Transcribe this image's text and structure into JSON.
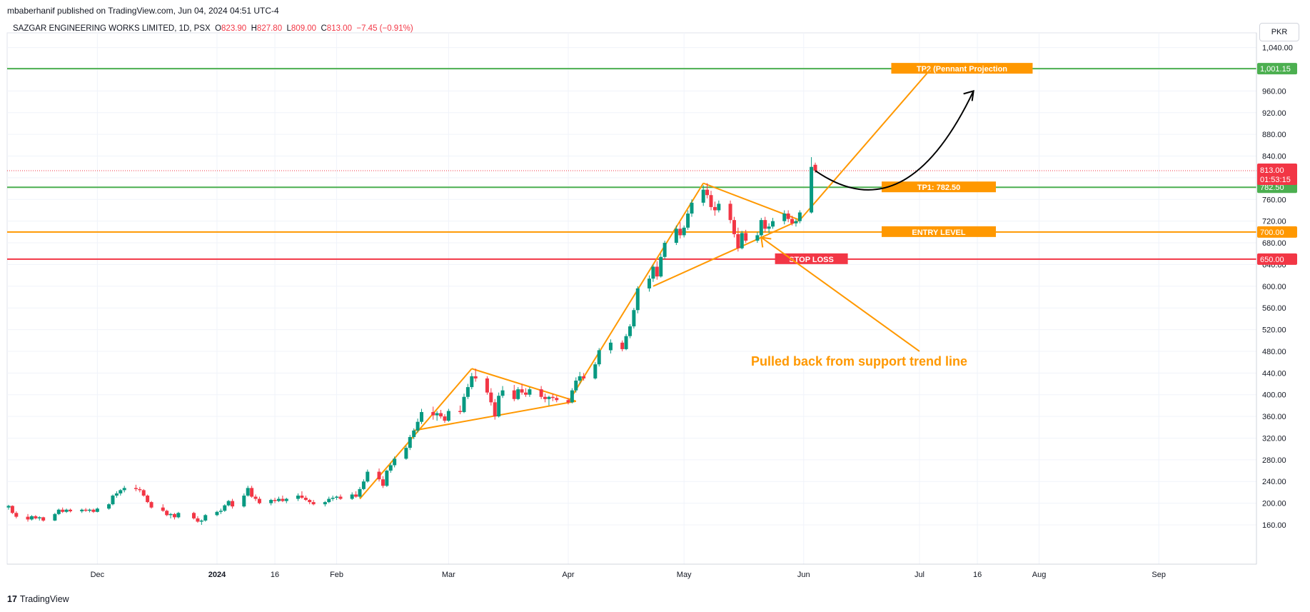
{
  "header": {
    "publisher": "mbaberhanif published on TradingView.com, Jun 04, 2024 04:51 UTC-4",
    "symbol": "SAZGAR ENGINEERING WORKS LIMITED, 1D, PSX",
    "open_label": "O",
    "open": "823.90",
    "high_label": "H",
    "high": "827.80",
    "low_label": "L",
    "low": "809.00",
    "close_label": "C",
    "close": "813.00",
    "change": "−7.45 (−0.91%)"
  },
  "currency": "PKR",
  "footer": {
    "logo": "17",
    "brand": "TradingView"
  },
  "colors": {
    "up": "#089981",
    "down": "#f23645",
    "pattern": "#ff9800",
    "tp_line": "#4caf50",
    "stop_line": "#f23645",
    "entry_line": "#ff9800",
    "text_dark": "#131722",
    "axis_text": "#131722"
  },
  "chart_data": {
    "type": "candlestick",
    "y_axis": {
      "range": [
        150,
        1045
      ],
      "ticks": [
        160,
        200,
        240,
        280,
        320,
        360,
        400,
        440,
        480,
        520,
        560,
        600,
        640,
        680,
        720,
        760,
        800,
        840,
        880,
        920,
        960,
        1000,
        1040
      ],
      "tick_labels": [
        "160.00",
        "200.00",
        "240.00",
        "280.00",
        "320.00",
        "360.00",
        "400.00",
        "440.00",
        "480.00",
        "520.00",
        "560.00",
        "600.00",
        "640.00",
        "680.00",
        "720.00",
        "760.00",
        "800.00",
        "840.00",
        "880.00",
        "920.00",
        "960.00",
        "1,000.00",
        "1,040.00"
      ]
    },
    "x_axis": {
      "start": "2023-11-08",
      "end": "2024-10-15",
      "ticks": [
        {
          "date": "2023-12-01",
          "label": "Dec",
          "bold": false
        },
        {
          "date": "2024-01-01",
          "label": "2024",
          "bold": true
        },
        {
          "date": "2024-01-16",
          "label": "16",
          "bold": false
        },
        {
          "date": "2024-02-01",
          "label": "Feb",
          "bold": false
        },
        {
          "date": "2024-03-01",
          "label": "Mar",
          "bold": false
        },
        {
          "date": "2024-04-01",
          "label": "Apr",
          "bold": false
        },
        {
          "date": "2024-05-01",
          "label": "May",
          "bold": false
        },
        {
          "date": "2024-06-01",
          "label": "Jun",
          "bold": false
        },
        {
          "date": "2024-07-01",
          "label": "Jul",
          "bold": false
        },
        {
          "date": "2024-07-16",
          "label": "16",
          "bold": false
        },
        {
          "date": "2024-08-01",
          "label": "Aug",
          "bold": false
        },
        {
          "date": "2024-09-01",
          "label": "Sep",
          "bold": false
        }
      ]
    },
    "candles": [
      [
        "2023-11-08",
        192,
        197,
        188,
        195
      ],
      [
        "2023-11-09",
        195,
        196,
        180,
        182
      ],
      [
        "2023-11-10",
        182,
        185,
        172,
        175
      ],
      [
        "2023-11-13",
        175,
        180,
        166,
        170
      ],
      [
        "2023-11-14",
        170,
        178,
        168,
        176
      ],
      [
        "2023-11-15",
        176,
        178,
        170,
        172
      ],
      [
        "2023-11-16",
        172,
        176,
        168,
        174
      ],
      [
        "2023-11-17",
        174,
        175,
        166,
        168
      ],
      [
        "2023-11-20",
        168,
        182,
        167,
        180
      ],
      [
        "2023-11-21",
        180,
        190,
        178,
        188
      ],
      [
        "2023-11-22",
        188,
        192,
        182,
        184
      ],
      [
        "2023-11-23",
        184,
        190,
        182,
        188
      ],
      [
        "2023-11-24",
        188,
        190,
        183,
        185
      ],
      [
        "2023-11-27",
        185,
        190,
        182,
        188
      ],
      [
        "2023-11-28",
        188,
        191,
        184,
        186
      ],
      [
        "2023-11-29",
        186,
        190,
        183,
        188
      ],
      [
        "2023-11-30",
        188,
        190,
        182,
        184
      ],
      [
        "2023-12-01",
        184,
        192,
        183,
        190
      ],
      [
        "2023-12-04",
        190,
        200,
        188,
        198
      ],
      [
        "2023-12-05",
        198,
        216,
        196,
        214
      ],
      [
        "2023-12-06",
        214,
        222,
        210,
        218
      ],
      [
        "2023-12-07",
        218,
        226,
        214,
        224
      ],
      [
        "2023-12-08",
        224,
        232,
        220,
        228
      ],
      [
        "2023-12-11",
        228,
        234,
        222,
        226
      ],
      [
        "2023-12-12",
        226,
        230,
        220,
        224
      ],
      [
        "2023-12-13",
        224,
        226,
        212,
        214
      ],
      [
        "2023-12-14",
        214,
        216,
        200,
        202
      ],
      [
        "2023-12-15",
        202,
        204,
        190,
        192
      ],
      [
        "2023-12-18",
        192,
        198,
        184,
        186
      ],
      [
        "2023-12-19",
        186,
        188,
        176,
        178
      ],
      [
        "2023-12-20",
        178,
        182,
        172,
        180
      ],
      [
        "2023-12-21",
        180,
        182,
        170,
        174
      ],
      [
        "2023-12-22",
        174,
        184,
        172,
        182
      ],
      [
        "2023-12-26",
        182,
        184,
        170,
        172
      ],
      [
        "2023-12-27",
        172,
        176,
        164,
        166
      ],
      [
        "2023-12-28",
        166,
        170,
        160,
        168
      ],
      [
        "2023-12-29",
        168,
        180,
        166,
        178
      ],
      [
        "2024-01-01",
        178,
        186,
        176,
        184
      ],
      [
        "2024-01-02",
        184,
        190,
        180,
        186
      ],
      [
        "2024-01-03",
        186,
        198,
        184,
        196
      ],
      [
        "2024-01-04",
        196,
        206,
        194,
        204
      ],
      [
        "2024-01-05",
        204,
        208,
        190,
        194
      ],
      [
        "2024-01-08",
        194,
        218,
        192,
        214
      ],
      [
        "2024-01-09",
        214,
        232,
        212,
        228
      ],
      [
        "2024-01-10",
        228,
        232,
        210,
        212
      ],
      [
        "2024-01-11",
        212,
        216,
        204,
        208
      ],
      [
        "2024-01-12",
        208,
        212,
        198,
        200
      ],
      [
        "2024-01-15",
        200,
        208,
        196,
        206
      ],
      [
        "2024-01-16",
        206,
        210,
        200,
        204
      ],
      [
        "2024-01-17",
        204,
        212,
        202,
        208
      ],
      [
        "2024-01-18",
        208,
        214,
        202,
        204
      ],
      [
        "2024-01-19",
        204,
        210,
        200,
        208
      ],
      [
        "2024-01-22",
        208,
        218,
        204,
        214
      ],
      [
        "2024-01-23",
        214,
        222,
        208,
        210
      ],
      [
        "2024-01-24",
        210,
        214,
        204,
        206
      ],
      [
        "2024-01-25",
        206,
        208,
        198,
        202
      ],
      [
        "2024-01-26",
        202,
        206,
        196,
        198
      ],
      [
        "2024-01-29",
        198,
        204,
        194,
        202
      ],
      [
        "2024-01-30",
        202,
        212,
        200,
        208
      ],
      [
        "2024-01-31",
        208,
        214,
        204,
        210
      ],
      [
        "2024-02-01",
        210,
        214,
        206,
        212
      ],
      [
        "2024-02-02",
        212,
        216,
        206,
        208
      ],
      [
        "2024-02-05",
        208,
        220,
        206,
        216
      ],
      [
        "2024-02-06",
        216,
        222,
        210,
        212
      ],
      [
        "2024-02-07",
        212,
        230,
        210,
        226
      ],
      [
        "2024-02-08",
        226,
        244,
        224,
        240
      ],
      [
        "2024-02-09",
        240,
        262,
        238,
        258
      ],
      [
        "2024-02-12",
        258,
        264,
        240,
        244
      ],
      [
        "2024-02-13",
        244,
        250,
        228,
        232
      ],
      [
        "2024-02-14",
        232,
        262,
        230,
        260
      ],
      [
        "2024-02-15",
        260,
        274,
        256,
        270
      ],
      [
        "2024-02-16",
        270,
        286,
        266,
        282
      ],
      [
        "2024-02-19",
        282,
        306,
        280,
        302
      ],
      [
        "2024-02-20",
        302,
        326,
        298,
        322
      ],
      [
        "2024-02-21",
        322,
        338,
        318,
        334
      ],
      [
        "2024-02-22",
        334,
        356,
        330,
        350
      ],
      [
        "2024-02-23",
        350,
        374,
        346,
        368
      ],
      [
        "2024-02-26",
        368,
        378,
        354,
        362
      ],
      [
        "2024-02-27",
        362,
        370,
        352,
        366
      ],
      [
        "2024-02-28",
        366,
        372,
        356,
        360
      ],
      [
        "2024-02-29",
        360,
        364,
        348,
        352
      ],
      [
        "2024-03-01",
        352,
        374,
        350,
        370
      ],
      [
        "2024-03-04",
        370,
        380,
        364,
        368
      ],
      [
        "2024-03-05",
        368,
        402,
        366,
        396
      ],
      [
        "2024-03-06",
        396,
        420,
        392,
        414
      ],
      [
        "2024-03-07",
        414,
        440,
        410,
        434
      ],
      [
        "2024-03-08",
        434,
        448,
        424,
        430
      ],
      [
        "2024-03-11",
        430,
        434,
        400,
        404
      ],
      [
        "2024-03-12",
        404,
        412,
        380,
        386
      ],
      [
        "2024-03-13",
        386,
        392,
        354,
        360
      ],
      [
        "2024-03-14",
        360,
        404,
        358,
        398
      ],
      [
        "2024-03-15",
        398,
        416,
        394,
        408
      ],
      [
        "2024-03-18",
        408,
        418,
        388,
        392
      ],
      [
        "2024-03-19",
        392,
        414,
        390,
        410
      ],
      [
        "2024-03-20",
        410,
        420,
        400,
        404
      ],
      [
        "2024-03-21",
        404,
        412,
        396,
        400
      ],
      [
        "2024-03-22",
        400,
        414,
        396,
        410
      ],
      [
        "2024-03-25",
        410,
        416,
        392,
        396
      ],
      [
        "2024-03-26",
        396,
        402,
        386,
        392
      ],
      [
        "2024-03-27",
        392,
        398,
        380,
        396
      ],
      [
        "2024-03-28",
        396,
        402,
        388,
        394
      ],
      [
        "2024-03-29",
        394,
        398,
        386,
        390
      ],
      [
        "2024-04-01",
        390,
        394,
        382,
        386
      ],
      [
        "2024-04-02",
        386,
        412,
        384,
        408
      ],
      [
        "2024-04-03",
        408,
        432,
        404,
        426
      ],
      [
        "2024-04-04",
        426,
        442,
        420,
        434
      ],
      [
        "2024-04-05",
        434,
        440,
        426,
        430
      ],
      [
        "2024-04-08",
        430,
        460,
        428,
        456
      ],
      [
        "2024-04-09",
        456,
        486,
        452,
        482
      ],
      [
        "2024-04-12",
        482,
        502,
        476,
        496
      ],
      [
        "2024-04-15",
        496,
        500,
        480,
        484
      ],
      [
        "2024-04-16",
        484,
        512,
        482,
        508
      ],
      [
        "2024-04-17",
        508,
        530,
        504,
        526
      ],
      [
        "2024-04-18",
        526,
        560,
        522,
        556
      ],
      [
        "2024-04-19",
        556,
        600,
        550,
        596
      ],
      [
        "2024-04-22",
        596,
        620,
        590,
        614
      ],
      [
        "2024-04-23",
        614,
        640,
        608,
        636
      ],
      [
        "2024-04-24",
        636,
        646,
        612,
        618
      ],
      [
        "2024-04-25",
        618,
        660,
        616,
        654
      ],
      [
        "2024-04-26",
        654,
        684,
        650,
        680
      ],
      [
        "2024-04-29",
        680,
        712,
        676,
        706
      ],
      [
        "2024-04-30",
        706,
        718,
        688,
        694
      ],
      [
        "2024-05-01",
        694,
        712,
        690,
        708
      ],
      [
        "2024-05-02",
        708,
        740,
        704,
        734
      ],
      [
        "2024-05-03",
        734,
        760,
        728,
        754
      ],
      [
        "2024-05-06",
        754,
        786,
        748,
        778
      ],
      [
        "2024-05-07",
        778,
        790,
        762,
        768
      ],
      [
        "2024-05-08",
        768,
        776,
        740,
        746
      ],
      [
        "2024-05-09",
        746,
        756,
        730,
        740
      ],
      [
        "2024-05-10",
        740,
        758,
        736,
        752
      ],
      [
        "2024-05-13",
        752,
        758,
        716,
        722
      ],
      [
        "2024-05-14",
        722,
        728,
        690,
        696
      ],
      [
        "2024-05-15",
        696,
        708,
        664,
        670
      ],
      [
        "2024-05-16",
        670,
        702,
        668,
        698
      ],
      [
        "2024-05-17",
        698,
        704,
        680,
        684
      ],
      [
        "2024-05-20",
        684,
        700,
        680,
        694
      ],
      [
        "2024-05-21",
        694,
        726,
        690,
        722
      ],
      [
        "2024-05-22",
        722,
        728,
        700,
        706
      ],
      [
        "2024-05-23",
        706,
        716,
        698,
        710
      ],
      [
        "2024-05-24",
        710,
        726,
        706,
        720
      ],
      [
        "2024-05-27",
        720,
        740,
        714,
        734
      ],
      [
        "2024-05-28",
        734,
        740,
        718,
        724
      ],
      [
        "2024-05-29",
        724,
        730,
        712,
        716
      ],
      [
        "2024-05-30",
        716,
        724,
        710,
        720
      ],
      [
        "2024-05-31",
        720,
        740,
        716,
        736
      ],
      [
        "2024-06-03",
        736,
        838,
        734,
        820
      ],
      [
        "2024-06-04",
        823.9,
        827.8,
        809,
        813
      ]
    ],
    "trendlines": [
      {
        "from": [
          "2024-02-07",
          208
        ],
        "to": [
          "2024-03-07",
          448
        ]
      },
      {
        "from": [
          "2024-03-07",
          448
        ],
        "to": [
          "2024-04-03",
          388
        ]
      },
      {
        "from": [
          "2024-02-21",
          334
        ],
        "to": [
          "2024-04-03",
          388
        ]
      },
      {
        "from": [
          "2024-04-01",
          386
        ],
        "to": [
          "2024-05-06",
          790
        ]
      },
      {
        "from": [
          "2024-05-06",
          790
        ],
        "to": [
          "2024-05-31",
          722
        ]
      },
      {
        "from": [
          "2024-04-23",
          600
        ],
        "to": [
          "2024-05-31",
          722
        ]
      },
      {
        "from": [
          "2024-05-31",
          722
        ],
        "to": [
          "2024-07-04",
          1001.15
        ]
      }
    ],
    "horizontal_levels": [
      {
        "price": 1001.15,
        "label": "TP2 (Pennant Projection",
        "tag": "1,001.15",
        "role": "tp2",
        "label_date": "2024-07-12"
      },
      {
        "price": 782.5,
        "label": "TP1: 782.50",
        "tag": "782.50",
        "role": "tp1",
        "label_date": "2024-07-06"
      },
      {
        "price": 700,
        "label": "ENTRY LEVEL",
        "tag": "700.00",
        "role": "entry",
        "label_date": "2024-07-06"
      },
      {
        "price": 650,
        "label": "STOP LOSS",
        "tag": "650.00",
        "role": "stop",
        "label_date": "2024-06-03"
      }
    ],
    "current_price": {
      "price": 813,
      "label": "813.00",
      "countdown": "01:53:15"
    },
    "annotation": {
      "text": "Pulled back from support trend line",
      "at": [
        "2024-06-04",
        460
      ]
    },
    "projection_arrow": {
      "from": [
        "2024-06-04",
        813
      ],
      "via": [
        "2024-06-20",
        750
      ],
      "to": [
        "2024-07-15",
        960
      ]
    },
    "pointer_arrow": {
      "from": [
        "2024-07-01",
        480
      ],
      "to": [
        "2024-05-21",
        690
      ]
    }
  }
}
